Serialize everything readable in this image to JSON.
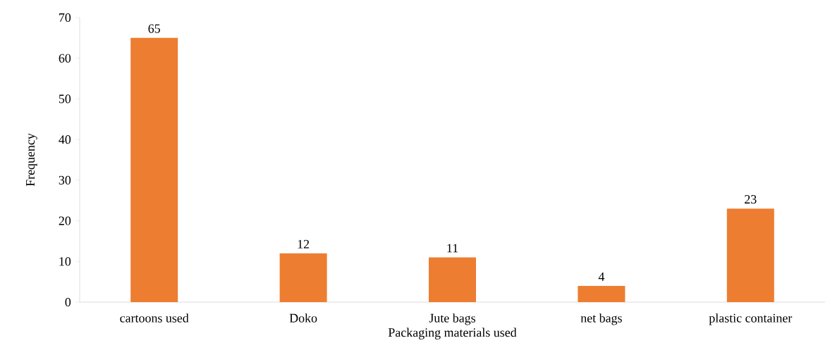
{
  "chart_data": {
    "type": "bar",
    "xlabel": "Packaging materials used",
    "ylabel": "Frequency",
    "categories": [
      "cartoons used",
      "Doko",
      "Jute bags",
      "net bags",
      "plastic container"
    ],
    "values": [
      65,
      12,
      11,
      4,
      23
    ],
    "color": "#ed7d31",
    "ylim": [
      0,
      70
    ],
    "yticks": [
      0,
      10,
      20,
      30,
      40,
      50,
      60,
      70
    ],
    "grid": false,
    "data_labels": true
  }
}
